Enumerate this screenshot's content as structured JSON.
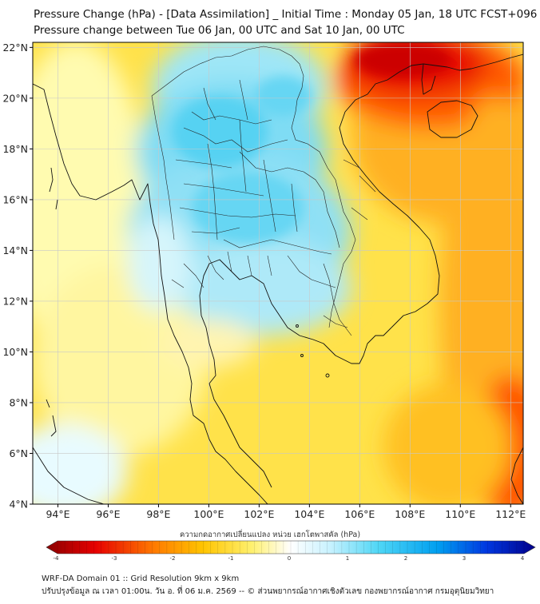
{
  "title_line1": "Pressure Change (hPa) - [Data Assimilation] _ Initial Time : Monday 05 Jan, 18 UTC FCST+096",
  "title_line2": "Pressure change between Tue 06 Jan, 00 UTC and Sat 10 Jan, 00 UTC",
  "lat_labels": [
    "22°N",
    "20°N",
    "18°N",
    "16°N",
    "14°N",
    "12°N",
    "10°N",
    "8°N",
    "6°N",
    "4°N"
  ],
  "lat_values": [
    22,
    20,
    18,
    16,
    14,
    12,
    10,
    8,
    6,
    4
  ],
  "lon_labels": [
    "94°E",
    "96°E",
    "98°E",
    "100°E",
    "102°E",
    "104°E",
    "106°E",
    "108°E",
    "110°E",
    "112°E"
  ],
  "lon_values": [
    94,
    96,
    98,
    100,
    102,
    104,
    106,
    108,
    110,
    112
  ],
  "map_extent": {
    "lon_min": 93,
    "lon_max": 112.5,
    "lat_min": 4,
    "lat_max": 22.2
  },
  "colorbar_label": "ความกดอากาศเปลี่ยนแปลง หน่วย เฮกโตพาสคัล (hPa)",
  "colorbar_ticks": [
    "-4",
    "-3",
    "-2",
    "-1",
    "0",
    "1",
    "2",
    "3",
    "4"
  ],
  "colorbar_values": [
    -4,
    -3,
    -2,
    -1,
    0,
    1,
    2,
    3,
    4
  ],
  "colors": {
    "strong_fall": "#d40000",
    "fall": "#ffa500",
    "slight_fall": "#ffe033",
    "neutral": "#ffffd8",
    "rise": "#44d4f2",
    "strong_rise": "#0000aa"
  },
  "footer_line1": "WRF-DA Domain 01 :: Grid Resolution 9km x 9km",
  "footer_line2": "ปรับปรุงข้อมูล ณ เวลา 01:00น. วัน อ. ที่ 06 ม.ค. 2569 -- © ส่วนพยากรณ์อากาศเชิงตัวเลข กองพยากรณ์อากาศ กรมอุตุนิยมวิทยา"
}
